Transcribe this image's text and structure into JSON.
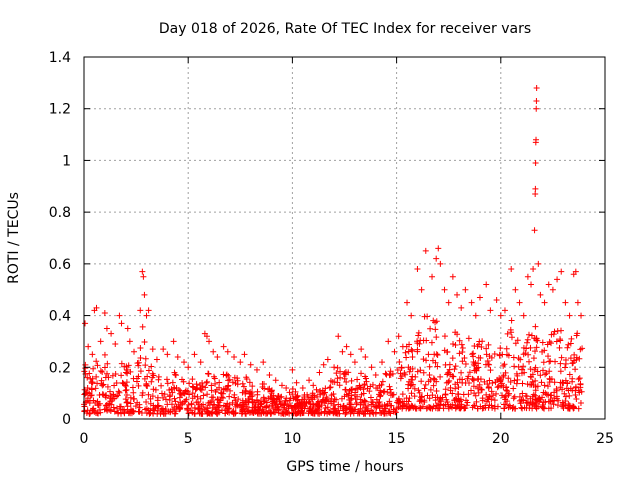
{
  "chart_data": {
    "type": "scatter",
    "title": "Day 018 of 2026, Rate Of TEC Index for receiver vars",
    "xlabel": "GPS time / hours",
    "ylabel": "ROTI / TECUs",
    "xlim": [
      0,
      25
    ],
    "ylim": [
      0,
      1.4
    ],
    "x_ticks": [
      0,
      5,
      10,
      15,
      20,
      25
    ],
    "x_tick_labels": [
      "0",
      "5",
      "10",
      "15",
      "20",
      "25"
    ],
    "y_ticks": [
      0,
      0.2,
      0.4,
      0.6,
      0.8,
      1,
      1.2,
      1.4
    ],
    "y_tick_labels": [
      "0",
      "0.2",
      "0.4",
      "0.6",
      "0.8",
      "1",
      "1.2",
      "1.4"
    ],
    "grid": true,
    "marker": "plus",
    "colors": {
      "points": "#ff0000",
      "grid": "#a0a0a0",
      "axes": "#000000",
      "background": "#ffffff"
    },
    "series": [
      {
        "name": "ROTI",
        "note": "approximately 1,700 observations, 0.0-23.9 h; points listed are the visually distinct peaks and envelope samples",
        "points": [
          [
            0.05,
            0.37
          ],
          [
            0.2,
            0.28
          ],
          [
            0.4,
            0.25
          ],
          [
            0.5,
            0.42
          ],
          [
            0.6,
            0.43
          ],
          [
            0.8,
            0.3
          ],
          [
            1.0,
            0.41
          ],
          [
            1.1,
            0.35
          ],
          [
            1.3,
            0.33
          ],
          [
            1.5,
            0.29
          ],
          [
            1.7,
            0.4
          ],
          [
            1.8,
            0.37
          ],
          [
            2.1,
            0.35
          ],
          [
            2.2,
            0.3
          ],
          [
            2.4,
            0.26
          ],
          [
            2.7,
            0.42
          ],
          [
            2.8,
            0.57
          ],
          [
            2.85,
            0.55
          ],
          [
            2.9,
            0.48
          ],
          [
            3.0,
            0.4
          ],
          [
            3.1,
            0.42
          ],
          [
            3.3,
            0.27
          ],
          [
            3.5,
            0.23
          ],
          [
            3.8,
            0.27
          ],
          [
            4.0,
            0.25
          ],
          [
            4.3,
            0.3
          ],
          [
            4.5,
            0.24
          ],
          [
            4.8,
            0.22
          ],
          [
            5.0,
            0.2
          ],
          [
            5.3,
            0.25
          ],
          [
            5.6,
            0.22
          ],
          [
            5.8,
            0.33
          ],
          [
            5.9,
            0.32
          ],
          [
            6.0,
            0.3
          ],
          [
            6.2,
            0.26
          ],
          [
            6.4,
            0.24
          ],
          [
            6.7,
            0.28
          ],
          [
            6.9,
            0.26
          ],
          [
            7.2,
            0.24
          ],
          [
            7.5,
            0.22
          ],
          [
            7.7,
            0.25
          ],
          [
            8.0,
            0.21
          ],
          [
            8.3,
            0.19
          ],
          [
            8.6,
            0.22
          ],
          [
            8.9,
            0.17
          ],
          [
            9.2,
            0.15
          ],
          [
            9.5,
            0.13
          ],
          [
            9.7,
            0.12
          ],
          [
            10.0,
            0.19
          ],
          [
            10.2,
            0.14
          ],
          [
            10.5,
            0.12
          ],
          [
            10.8,
            0.15
          ],
          [
            11.0,
            0.13
          ],
          [
            11.3,
            0.18
          ],
          [
            11.5,
            0.21
          ],
          [
            11.7,
            0.23
          ],
          [
            12.0,
            0.2
          ],
          [
            12.2,
            0.32
          ],
          [
            12.4,
            0.26
          ],
          [
            12.6,
            0.28
          ],
          [
            12.8,
            0.25
          ],
          [
            13.0,
            0.22
          ],
          [
            13.3,
            0.27
          ],
          [
            13.5,
            0.24
          ],
          [
            13.8,
            0.2
          ],
          [
            14.0,
            0.17
          ],
          [
            14.3,
            0.22
          ],
          [
            14.6,
            0.3
          ],
          [
            14.9,
            0.26
          ],
          [
            15.1,
            0.32
          ],
          [
            15.3,
            0.28
          ],
          [
            15.5,
            0.45
          ],
          [
            15.7,
            0.4
          ],
          [
            16.0,
            0.58
          ],
          [
            16.2,
            0.5
          ],
          [
            16.4,
            0.65
          ],
          [
            16.7,
            0.55
          ],
          [
            16.9,
            0.62
          ],
          [
            17.0,
            0.66
          ],
          [
            17.1,
            0.6
          ],
          [
            17.3,
            0.5
          ],
          [
            17.5,
            0.45
          ],
          [
            17.7,
            0.55
          ],
          [
            17.9,
            0.48
          ],
          [
            18.1,
            0.43
          ],
          [
            18.3,
            0.5
          ],
          [
            18.6,
            0.45
          ],
          [
            18.8,
            0.4
          ],
          [
            19.0,
            0.47
          ],
          [
            19.3,
            0.52
          ],
          [
            19.5,
            0.42
          ],
          [
            19.8,
            0.46
          ],
          [
            20.0,
            0.4
          ],
          [
            20.2,
            0.42
          ],
          [
            20.5,
            0.58
          ],
          [
            20.7,
            0.5
          ],
          [
            20.9,
            0.45
          ],
          [
            21.1,
            0.4
          ],
          [
            21.3,
            0.55
          ],
          [
            21.45,
            0.52
          ],
          [
            21.55,
            0.58
          ],
          [
            21.62,
            0.73
          ],
          [
            21.65,
            0.87
          ],
          [
            21.66,
            0.89
          ],
          [
            21.67,
            0.99
          ],
          [
            21.68,
            1.07
          ],
          [
            21.69,
            1.08
          ],
          [
            21.7,
            1.2
          ],
          [
            21.71,
            1.23
          ],
          [
            21.72,
            1.28
          ],
          [
            21.8,
            0.6
          ],
          [
            21.9,
            0.48
          ],
          [
            22.1,
            0.45
          ],
          [
            22.3,
            0.52
          ],
          [
            22.5,
            0.5
          ],
          [
            22.7,
            0.54
          ],
          [
            22.9,
            0.57
          ],
          [
            23.1,
            0.45
          ],
          [
            23.3,
            0.4
          ],
          [
            23.5,
            0.56
          ],
          [
            23.6,
            0.57
          ],
          [
            23.7,
            0.45
          ],
          [
            23.85,
            0.4
          ]
        ]
      }
    ]
  }
}
